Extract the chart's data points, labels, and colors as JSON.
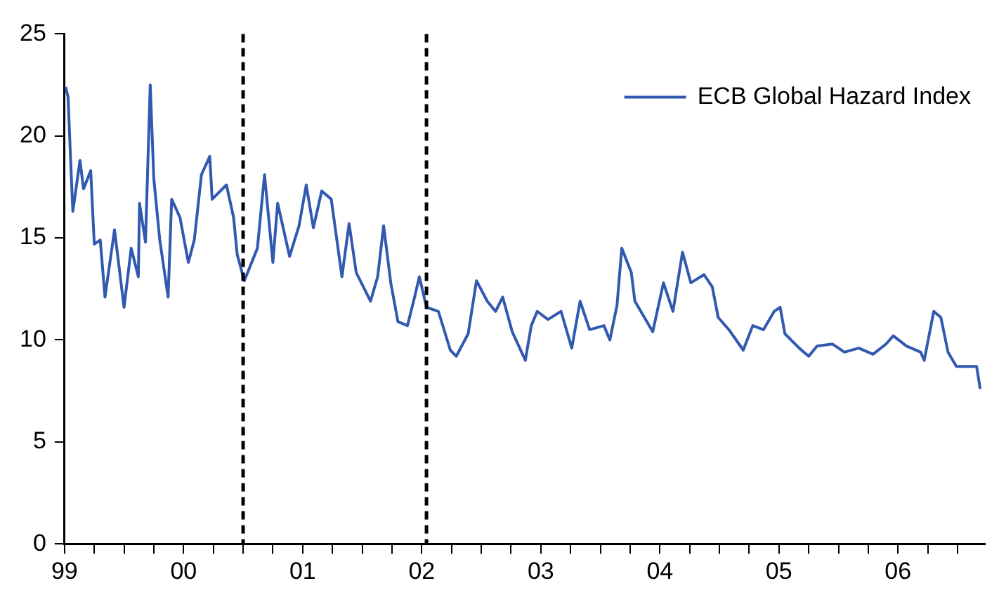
{
  "chart_data": {
    "type": "line",
    "xlim": [
      1999,
      2006.73
    ],
    "ylim": [
      0,
      25
    ],
    "yticks": [
      0,
      5,
      10,
      15,
      20,
      25
    ],
    "xticks": [
      {
        "value": 1999,
        "label": "99"
      },
      {
        "value": 1999.25,
        "label": null
      },
      {
        "value": 1999.5,
        "label": null
      },
      {
        "value": 1999.75,
        "label": null
      },
      {
        "value": 2000,
        "label": "00"
      },
      {
        "value": 2000.25,
        "label": null
      },
      {
        "value": 2000.5,
        "label": null
      },
      {
        "value": 2000.75,
        "label": null
      },
      {
        "value": 2001,
        "label": "01"
      },
      {
        "value": 2001.25,
        "label": null
      },
      {
        "value": 2001.5,
        "label": null
      },
      {
        "value": 2001.75,
        "label": null
      },
      {
        "value": 2002,
        "label": "02"
      },
      {
        "value": 2002.25,
        "label": null
      },
      {
        "value": 2002.5,
        "label": null
      },
      {
        "value": 2002.75,
        "label": null
      },
      {
        "value": 2003,
        "label": "03"
      },
      {
        "value": 2003.25,
        "label": null
      },
      {
        "value": 2003.5,
        "label": null
      },
      {
        "value": 2003.75,
        "label": null
      },
      {
        "value": 2004,
        "label": "04"
      },
      {
        "value": 2004.25,
        "label": null
      },
      {
        "value": 2004.5,
        "label": null
      },
      {
        "value": 2004.75,
        "label": null
      },
      {
        "value": 2005,
        "label": "05"
      },
      {
        "value": 2005.25,
        "label": null
      },
      {
        "value": 2005.5,
        "label": null
      },
      {
        "value": 2005.75,
        "label": null
      },
      {
        "value": 2006,
        "label": "06"
      },
      {
        "value": 2006.25,
        "label": null
      },
      {
        "value": 2006.5,
        "label": null
      }
    ],
    "grid": false,
    "legend": "top right",
    "marker": "none",
    "line_style": "solid",
    "ref_lines": [
      {
        "axis": "x",
        "value": 2000.5,
        "color": "#000000",
        "line_style": "dashed"
      },
      {
        "axis": "x",
        "value": 2002.04,
        "color": "#000000",
        "line_style": "dashed"
      }
    ],
    "series": [
      {
        "name": "ECB Global Hazard Index",
        "color": "#3159b0",
        "x": [
          1999.01,
          1999.03,
          1999.05,
          1999.07,
          1999.13,
          1999.16,
          1999.22,
          1999.25,
          1999.3,
          1999.34,
          1999.42,
          1999.5,
          1999.56,
          1999.62,
          1999.63,
          1999.68,
          1999.72,
          1999.75,
          1999.8,
          1999.87,
          1999.9,
          1999.97,
          2000.04,
          2000.09,
          2000.15,
          2000.22,
          2000.24,
          2000.36,
          2000.42,
          2000.45,
          2000.51,
          2000.62,
          2000.68,
          2000.75,
          2000.79,
          2000.89,
          2000.97,
          2001.03,
          2001.09,
          2001.16,
          2001.24,
          2001.33,
          2001.39,
          2001.45,
          2001.57,
          2001.63,
          2001.68,
          2001.74,
          2001.8,
          2001.88,
          2001.94,
          2001.98,
          2002.04,
          2002.14,
          2002.24,
          2002.29,
          2002.39,
          2002.46,
          2002.55,
          2002.62,
          2002.68,
          2002.76,
          2002.87,
          2002.92,
          2002.97,
          2003.06,
          2003.17,
          2003.26,
          2003.33,
          2003.41,
          2003.53,
          2003.58,
          2003.64,
          2003.68,
          2003.76,
          2003.79,
          2003.94,
          2004.03,
          2004.11,
          2004.19,
          2004.26,
          2004.37,
          2004.44,
          2004.49,
          2004.58,
          2004.7,
          2004.78,
          2004.87,
          2004.96,
          2005.01,
          2005.05,
          2005.17,
          2005.25,
          2005.32,
          2005.45,
          2005.55,
          2005.67,
          2005.79,
          2005.9,
          2005.96,
          2006.07,
          2006.19,
          2006.22,
          2006.3,
          2006.36,
          2006.42,
          2006.49,
          2006.66,
          2006.69
        ],
        "values": [
          22.4,
          21.9,
          19,
          16.3,
          18.8,
          17.4,
          18.3,
          14.7,
          14.9,
          12.1,
          15.4,
          11.6,
          14.5,
          13.1,
          16.7,
          14.8,
          22.5,
          17.9,
          14.9,
          12.1,
          16.9,
          16,
          13.8,
          14.9,
          18.1,
          19,
          16.9,
          17.6,
          16,
          14.2,
          12.9,
          14.5,
          18.1,
          13.8,
          16.7,
          14.1,
          15.6,
          17.6,
          15.5,
          17.3,
          16.9,
          13.1,
          15.7,
          13.3,
          11.9,
          13.1,
          15.6,
          12.8,
          10.9,
          10.7,
          12.1,
          13.1,
          11.6,
          11.4,
          9.5,
          9.2,
          10.3,
          12.9,
          11.9,
          11.4,
          12.1,
          10.4,
          9,
          10.7,
          11.4,
          11,
          11.4,
          9.6,
          11.9,
          10.5,
          10.7,
          10,
          11.7,
          14.5,
          13.3,
          11.9,
          10.4,
          12.8,
          11.4,
          14.3,
          12.8,
          13.2,
          12.6,
          11.1,
          10.5,
          9.5,
          10.7,
          10.5,
          11.4,
          11.6,
          10.3,
          9.6,
          9.2,
          9.7,
          9.8,
          9.4,
          9.6,
          9.3,
          9.8,
          10.2,
          9.7,
          9.4,
          9,
          11.4,
          11.1,
          9.4,
          8.7,
          8.7,
          7.6
        ]
      }
    ]
  }
}
